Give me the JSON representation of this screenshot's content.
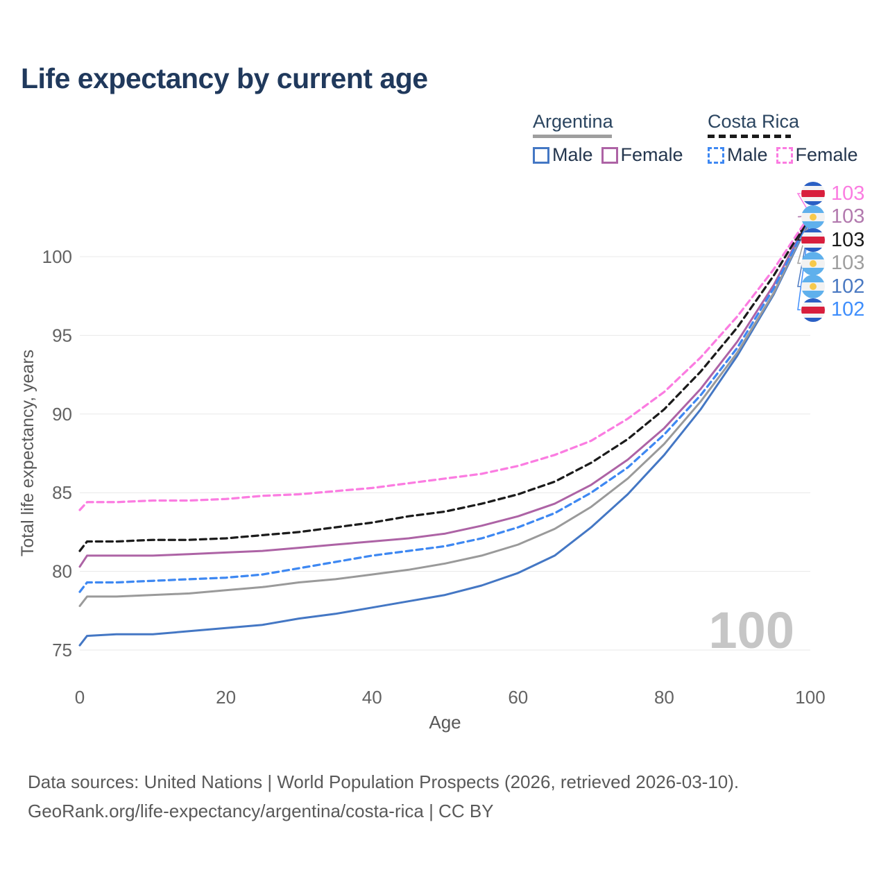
{
  "title": "Life expectancy by current age",
  "watermark_age": "100",
  "legend": {
    "groups": [
      {
        "label": "Argentina",
        "line_style": "solid",
        "underline_color": "#9e9e9e",
        "items": [
          {
            "label": "Male",
            "color": "#4477c4"
          },
          {
            "label": "Female",
            "color": "#ad63a5"
          }
        ]
      },
      {
        "label": "Costa Rica",
        "line_style": "dashed",
        "underline_color": "#1a1a1a",
        "items": [
          {
            "label": "Male",
            "color": "#3e88f2"
          },
          {
            "label": "Female",
            "color": "#fb7ce1"
          }
        ]
      }
    ]
  },
  "endpoints": [
    {
      "country": "costa-rica",
      "series": "cr_female",
      "value": "103",
      "color": "#fb7ce1"
    },
    {
      "country": "argentina",
      "series": "ar_female",
      "value": "103",
      "color": "#b279ae"
    },
    {
      "country": "costa-rica",
      "series": "cr_both",
      "value": "103",
      "color": "#1a1a1a"
    },
    {
      "country": "argentina",
      "series": "ar_both",
      "value": "103",
      "color": "#9e9e9e"
    },
    {
      "country": "argentina",
      "series": "ar_male",
      "value": "102",
      "color": "#4a79c2"
    },
    {
      "country": "costa-rica",
      "series": "cr_male",
      "value": "102",
      "color": "#3f8efc"
    }
  ],
  "chart_data": {
    "type": "line",
    "title": "Life expectancy by current age",
    "xlabel": "Age",
    "ylabel": "Total life expectancy, years",
    "xlim": [
      0,
      100
    ],
    "ylim": [
      75,
      100
    ],
    "xticks": [
      0,
      20,
      40,
      60,
      80,
      100
    ],
    "yticks": [
      75,
      80,
      85,
      90,
      95,
      100
    ],
    "grid": true,
    "legend_position": "top-right",
    "x": [
      0,
      1,
      5,
      10,
      15,
      20,
      25,
      30,
      35,
      40,
      45,
      50,
      55,
      60,
      65,
      70,
      75,
      80,
      85,
      90,
      95,
      100
    ],
    "series": [
      {
        "key": "ar_male",
        "name": "Argentina Male",
        "color": "#4477c4",
        "dashed": false,
        "values": [
          75.3,
          75.9,
          76.0,
          76.0,
          76.2,
          76.4,
          76.6,
          77.0,
          77.3,
          77.7,
          78.1,
          78.5,
          79.1,
          79.9,
          81.0,
          82.8,
          84.9,
          87.4,
          90.3,
          93.7,
          97.6,
          102.4
        ]
      },
      {
        "key": "ar_both",
        "name": "Argentina Both sexes",
        "color": "#9a9a9a",
        "dashed": false,
        "values": [
          77.8,
          78.4,
          78.4,
          78.5,
          78.6,
          78.8,
          79.0,
          79.3,
          79.5,
          79.8,
          80.1,
          80.5,
          81.0,
          81.7,
          82.7,
          84.1,
          85.9,
          88.1,
          90.8,
          93.9,
          97.7,
          102.5
        ]
      },
      {
        "key": "ar_female",
        "name": "Argentina Female",
        "color": "#ad63a5",
        "dashed": false,
        "values": [
          80.3,
          81.0,
          81.0,
          81.0,
          81.1,
          81.2,
          81.3,
          81.5,
          81.7,
          81.9,
          82.1,
          82.4,
          82.9,
          83.5,
          84.3,
          85.5,
          87.1,
          89.1,
          91.6,
          94.6,
          98.2,
          102.6
        ]
      },
      {
        "key": "cr_male",
        "name": "Costa Rica Male",
        "color": "#3e88f2",
        "dashed": true,
        "values": [
          78.7,
          79.3,
          79.3,
          79.4,
          79.5,
          79.6,
          79.8,
          80.2,
          80.6,
          81.0,
          81.3,
          81.6,
          82.1,
          82.8,
          83.7,
          85.0,
          86.6,
          88.7,
          91.2,
          94.2,
          98.0,
          102.5
        ]
      },
      {
        "key": "cr_both",
        "name": "Costa Rica Both sexes",
        "color": "#1b1b1b",
        "dashed": true,
        "values": [
          81.3,
          81.9,
          81.9,
          82.0,
          82.0,
          82.1,
          82.3,
          82.5,
          82.8,
          83.1,
          83.5,
          83.8,
          84.3,
          84.9,
          85.7,
          86.9,
          88.4,
          90.3,
          92.7,
          95.5,
          98.8,
          102.6
        ]
      },
      {
        "key": "cr_female",
        "name": "Costa Rica Female",
        "color": "#fb7ce1",
        "dashed": true,
        "values": [
          83.9,
          84.4,
          84.4,
          84.5,
          84.5,
          84.6,
          84.8,
          84.9,
          85.1,
          85.3,
          85.6,
          85.9,
          86.2,
          86.7,
          87.4,
          88.3,
          89.7,
          91.4,
          93.6,
          96.2,
          99.2,
          102.7
        ]
      }
    ]
  },
  "footer": {
    "line1": "Data sources: United Nations | World Population Prospects (2026, retrieved 2026-03-10).",
    "line2": "GeoRank.org/life-expectancy/argentina/costa-rica | CC BY"
  }
}
